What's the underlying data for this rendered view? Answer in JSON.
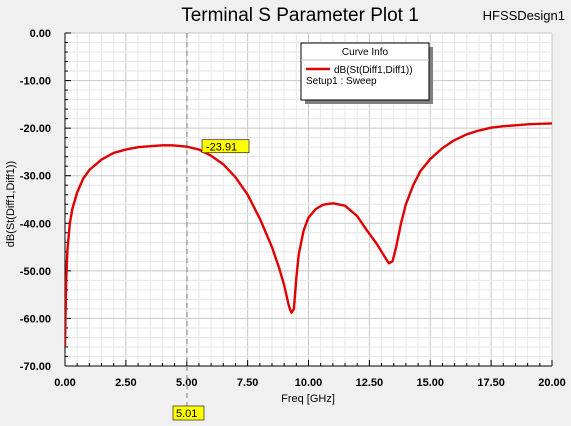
{
  "window": {
    "title": "Terminal S Parameter Plot 1",
    "design_name": "HFSSDesign1"
  },
  "legend": {
    "header": "Curve Info",
    "entries": [
      {
        "label": "dB(St(Diff1,Diff1))",
        "sublabel": "Setup1 : Sweep",
        "color": "#e00000"
      }
    ]
  },
  "marker": {
    "x": 5.01,
    "x_label": "5.01",
    "y": -23.91,
    "y_label": "-23.91",
    "label_bg": "#ffff00",
    "line_color": "#808080"
  },
  "chart_data": {
    "type": "line",
    "title": "Terminal S Parameter Plot 1",
    "xlabel": "Freq [GHz]",
    "ylabel": "dB(St(Diff1,Diff1))",
    "xlim": [
      0,
      20
    ],
    "ylim": [
      -70,
      0
    ],
    "x_ticks": [
      0,
      2.5,
      5,
      7.5,
      10,
      12.5,
      15,
      17.5,
      20
    ],
    "x_tick_labels": [
      "0.00",
      "2.50",
      "5.00",
      "7.50",
      "10.00",
      "12.50",
      "15.00",
      "17.50",
      "20.00"
    ],
    "y_ticks": [
      0,
      -10,
      -20,
      -30,
      -40,
      -50,
      -60,
      -70
    ],
    "y_tick_labels": [
      "0.00",
      "-10.00",
      "-20.00",
      "-30.00",
      "-40.00",
      "-50.00",
      "-60.00",
      "-70.00"
    ],
    "grid": true,
    "legend_position": "top-right",
    "series": [
      {
        "name": "dB(St(Diff1,Diff1))",
        "color": "#e00000",
        "x": [
          0.0,
          0.02,
          0.05,
          0.1,
          0.2,
          0.3,
          0.5,
          0.75,
          1.0,
          1.5,
          2.0,
          2.5,
          3.0,
          3.5,
          4.0,
          4.4,
          4.8,
          5.01,
          5.5,
          6.0,
          6.5,
          7.0,
          7.5,
          8.0,
          8.5,
          8.8,
          9.0,
          9.2,
          9.3,
          9.4,
          9.5,
          9.6,
          9.8,
          10.0,
          10.3,
          10.6,
          11.0,
          11.5,
          12.0,
          12.4,
          12.8,
          13.1,
          13.3,
          13.45,
          13.6,
          13.8,
          14.0,
          14.3,
          14.6,
          15.0,
          15.5,
          16.0,
          16.5,
          17.0,
          17.5,
          18.0,
          18.5,
          19.0,
          19.5,
          20.0
        ],
        "y": [
          -65.8,
          -60.0,
          -52.0,
          -45.5,
          -40.0,
          -37.0,
          -33.5,
          -30.6,
          -28.8,
          -26.6,
          -25.2,
          -24.5,
          -24.0,
          -23.8,
          -23.6,
          -23.6,
          -23.8,
          -23.91,
          -24.5,
          -25.8,
          -27.6,
          -30.3,
          -34.0,
          -39.0,
          -45.0,
          -49.5,
          -53.0,
          -57.5,
          -58.8,
          -58.0,
          -51.5,
          -46.5,
          -41.5,
          -38.8,
          -37.0,
          -36.1,
          -35.8,
          -36.3,
          -38.5,
          -41.5,
          -44.3,
          -46.8,
          -48.4,
          -48.0,
          -45.0,
          -40.0,
          -36.0,
          -32.0,
          -29.0,
          -26.5,
          -24.2,
          -22.5,
          -21.3,
          -20.5,
          -19.9,
          -19.6,
          -19.4,
          -19.2,
          -19.1,
          -19.0
        ]
      }
    ]
  }
}
